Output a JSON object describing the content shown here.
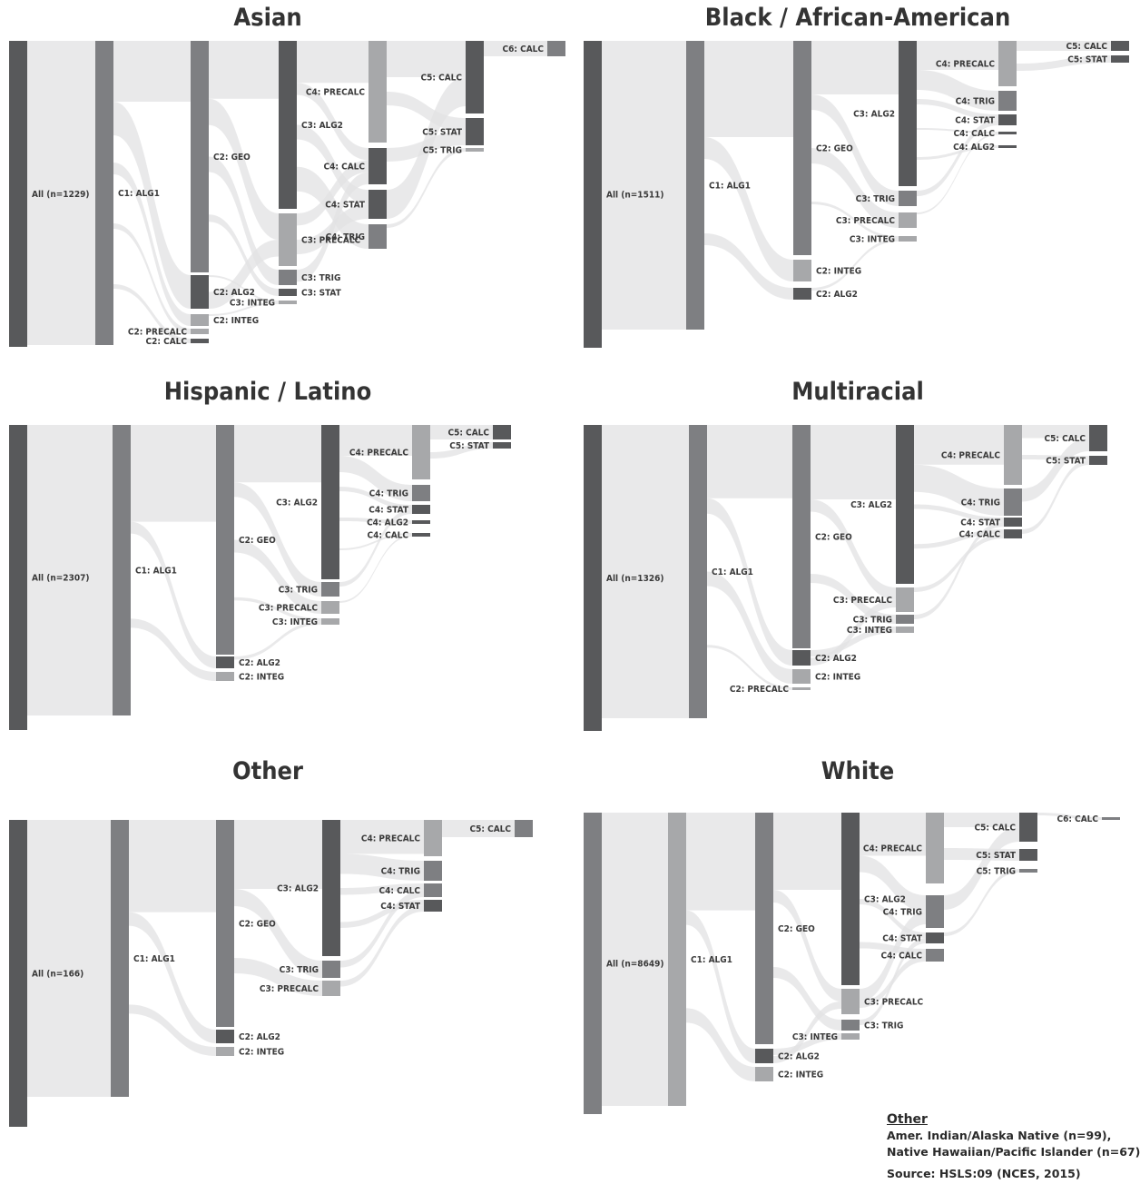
{
  "panels": [
    {
      "title": "Asian",
      "nodes": [
        {
          "id": "all",
          "label": "All (n=1229)",
          "tone": "d"
        },
        {
          "id": "alg1",
          "label": "C1: ALG1",
          "tone": "m"
        },
        {
          "id": "geo",
          "label": "C2: GEO",
          "tone": "m"
        },
        {
          "id": "alg2b",
          "label": "C2: ALG2",
          "tone": "d"
        },
        {
          "id": "integb",
          "label": "C2: INTEG",
          "tone": "l"
        },
        {
          "id": "precalcb",
          "label": "C2: PRECALC",
          "tone": "l"
        },
        {
          "id": "calcb",
          "label": "C2: CALC",
          "tone": "d"
        },
        {
          "id": "alg2c",
          "label": "C3: ALG2",
          "tone": "d"
        },
        {
          "id": "precalcc",
          "label": "C3: PRECALC",
          "tone": "l"
        },
        {
          "id": "trigc",
          "label": "C3: TRIG",
          "tone": "m"
        },
        {
          "id": "statc",
          "label": "C3: STAT",
          "tone": "d"
        },
        {
          "id": "integc",
          "label": "C3: INTEG",
          "tone": "l"
        },
        {
          "id": "precalcd",
          "label": "C4: PRECALC",
          "tone": "l"
        },
        {
          "id": "calcd",
          "label": "C4: CALC",
          "tone": "d"
        },
        {
          "id": "statd",
          "label": "C4: STAT",
          "tone": "d"
        },
        {
          "id": "trigd",
          "label": "C4: TRIG",
          "tone": "m"
        },
        {
          "id": "calce",
          "label": "C5: CALC",
          "tone": "d"
        },
        {
          "id": "state",
          "label": "C5: STAT",
          "tone": "d"
        },
        {
          "id": "trige",
          "label": "C5: TRIG",
          "tone": "l"
        },
        {
          "id": "calcf",
          "label": "C6: CALC",
          "tone": "m"
        }
      ]
    },
    {
      "title": "Black / African-American",
      "nodes": [
        {
          "id": "all",
          "label": "All (n=1511)",
          "tone": "d"
        },
        {
          "id": "alg1",
          "label": "C1: ALG1",
          "tone": "m"
        },
        {
          "id": "geo",
          "label": "C2: GEO",
          "tone": "m"
        },
        {
          "id": "integb",
          "label": "C2: INTEG",
          "tone": "l"
        },
        {
          "id": "alg2b",
          "label": "C2: ALG2",
          "tone": "d"
        },
        {
          "id": "alg2c",
          "label": "C3: ALG2",
          "tone": "d"
        },
        {
          "id": "trigc",
          "label": "C3: TRIG",
          "tone": "m"
        },
        {
          "id": "precalcc",
          "label": "C3: PRECALC",
          "tone": "l"
        },
        {
          "id": "integc",
          "label": "C3: INTEG",
          "tone": "l"
        },
        {
          "id": "precalcd",
          "label": "C4: PRECALC",
          "tone": "l"
        },
        {
          "id": "trigd",
          "label": "C4: TRIG",
          "tone": "m"
        },
        {
          "id": "statd",
          "label": "C4: STAT",
          "tone": "d"
        },
        {
          "id": "calcd",
          "label": "C4: CALC",
          "tone": "d"
        },
        {
          "id": "alg2d",
          "label": "C4: ALG2",
          "tone": "d"
        },
        {
          "id": "calce",
          "label": "C5: CALC",
          "tone": "d"
        },
        {
          "id": "state",
          "label": "C5: STAT",
          "tone": "d"
        }
      ]
    },
    {
      "title": "Hispanic / Latino",
      "nodes": [
        {
          "id": "all",
          "label": "All (n=2307)",
          "tone": "d"
        },
        {
          "id": "alg1",
          "label": "C1: ALG1",
          "tone": "m"
        },
        {
          "id": "geo",
          "label": "C2: GEO",
          "tone": "m"
        },
        {
          "id": "alg2b",
          "label": "C2: ALG2",
          "tone": "d"
        },
        {
          "id": "integb",
          "label": "C2: INTEG",
          "tone": "l"
        },
        {
          "id": "alg2c",
          "label": "C3: ALG2",
          "tone": "d"
        },
        {
          "id": "trigc",
          "label": "C3: TRIG",
          "tone": "m"
        },
        {
          "id": "precalcc",
          "label": "C3: PRECALC",
          "tone": "l"
        },
        {
          "id": "integc",
          "label": "C3: INTEG",
          "tone": "l"
        },
        {
          "id": "precalcd",
          "label": "C4: PRECALC",
          "tone": "l"
        },
        {
          "id": "trigd",
          "label": "C4: TRIG",
          "tone": "m"
        },
        {
          "id": "statd",
          "label": "C4: STAT",
          "tone": "d"
        },
        {
          "id": "alg2d",
          "label": "C4: ALG2",
          "tone": "d"
        },
        {
          "id": "calcd",
          "label": "C4: CALC",
          "tone": "d"
        },
        {
          "id": "calce",
          "label": "C5: CALC",
          "tone": "d"
        },
        {
          "id": "state",
          "label": "C5: STAT",
          "tone": "d"
        }
      ]
    },
    {
      "title": "Multiracial",
      "nodes": [
        {
          "id": "all",
          "label": "All (n=1326)",
          "tone": "d"
        },
        {
          "id": "alg1",
          "label": "C1: ALG1",
          "tone": "m"
        },
        {
          "id": "geo",
          "label": "C2: GEO",
          "tone": "m"
        },
        {
          "id": "alg2b",
          "label": "C2: ALG2",
          "tone": "d"
        },
        {
          "id": "integb",
          "label": "C2: INTEG",
          "tone": "l"
        },
        {
          "id": "precalcb",
          "label": "C2: PRECALC",
          "tone": "l"
        },
        {
          "id": "alg2c",
          "label": "C3: ALG2",
          "tone": "d"
        },
        {
          "id": "precalcc",
          "label": "C3: PRECALC",
          "tone": "l"
        },
        {
          "id": "trigc",
          "label": "C3: TRIG",
          "tone": "m"
        },
        {
          "id": "integc",
          "label": "C3: INTEG",
          "tone": "l"
        },
        {
          "id": "precalcd",
          "label": "C4: PRECALC",
          "tone": "l"
        },
        {
          "id": "trigd",
          "label": "C4: TRIG",
          "tone": "m"
        },
        {
          "id": "statd",
          "label": "C4: STAT",
          "tone": "d"
        },
        {
          "id": "calcd",
          "label": "C4: CALC",
          "tone": "d"
        },
        {
          "id": "calce",
          "label": "C5: CALC",
          "tone": "d"
        },
        {
          "id": "state",
          "label": "C5: STAT",
          "tone": "d"
        }
      ]
    },
    {
      "title": "Other",
      "nodes": [
        {
          "id": "all",
          "label": "All (n=166)",
          "tone": "d"
        },
        {
          "id": "alg1",
          "label": "C1: ALG1",
          "tone": "m"
        },
        {
          "id": "geo",
          "label": "C2: GEO",
          "tone": "m"
        },
        {
          "id": "alg2b",
          "label": "C2: ALG2",
          "tone": "d"
        },
        {
          "id": "integb",
          "label": "C2: INTEG",
          "tone": "l"
        },
        {
          "id": "alg2c",
          "label": "C3: ALG2",
          "tone": "d"
        },
        {
          "id": "trigc",
          "label": "C3: TRIG",
          "tone": "m"
        },
        {
          "id": "precalcc",
          "label": "C3: PRECALC",
          "tone": "l"
        },
        {
          "id": "precalcd",
          "label": "C4: PRECALC",
          "tone": "l"
        },
        {
          "id": "trigd",
          "label": "C4: TRIG",
          "tone": "m"
        },
        {
          "id": "calcd",
          "label": "C4: CALC",
          "tone": "m"
        },
        {
          "id": "statd",
          "label": "C4: STAT",
          "tone": "d"
        },
        {
          "id": "calce",
          "label": "C5: CALC",
          "tone": "m"
        }
      ]
    },
    {
      "title": "White",
      "nodes": [
        {
          "id": "all",
          "label": "All (n=8649)",
          "tone": "m"
        },
        {
          "id": "alg1",
          "label": "C1: ALG1",
          "tone": "l"
        },
        {
          "id": "geo",
          "label": "C2: GEO",
          "tone": "m"
        },
        {
          "id": "alg2b",
          "label": "C2: ALG2",
          "tone": "d"
        },
        {
          "id": "integb",
          "label": "C2: INTEG",
          "tone": "l"
        },
        {
          "id": "alg2c",
          "label": "C3: ALG2",
          "tone": "d"
        },
        {
          "id": "precalcc",
          "label": "C3: PRECALC",
          "tone": "l"
        },
        {
          "id": "trigc",
          "label": "C3: TRIG",
          "tone": "m"
        },
        {
          "id": "integc",
          "label": "C3: INTEG",
          "tone": "l"
        },
        {
          "id": "precalcd",
          "label": "C4: PRECALC",
          "tone": "l"
        },
        {
          "id": "trigd",
          "label": "C4: TRIG",
          "tone": "m"
        },
        {
          "id": "statd",
          "label": "C4: STAT",
          "tone": "d"
        },
        {
          "id": "calcd",
          "label": "C4: CALC",
          "tone": "m"
        },
        {
          "id": "calce",
          "label": "C5: CALC",
          "tone": "d"
        },
        {
          "id": "state",
          "label": "C5: STAT",
          "tone": "d"
        },
        {
          "id": "trige",
          "label": "C5: TRIG",
          "tone": "m"
        },
        {
          "id": "calcf",
          "label": "C6: CALC",
          "tone": "m"
        }
      ]
    }
  ],
  "legend": {
    "heading": "Other",
    "line1": "Amer. Indian/Alaska Native (n=99),",
    "line2": "Native Hawaiian/Pacific Islander (n=67)",
    "source": "Source: HSLS:09 (NCES, 2015)"
  },
  "colors": {
    "node_dark": "#58595b",
    "node_mid": "#7e7f82",
    "node_light": "#a7a8aa",
    "node_pale": "#c8c9cb",
    "flow": "#e1e2e3",
    "title": "#333333"
  }
}
